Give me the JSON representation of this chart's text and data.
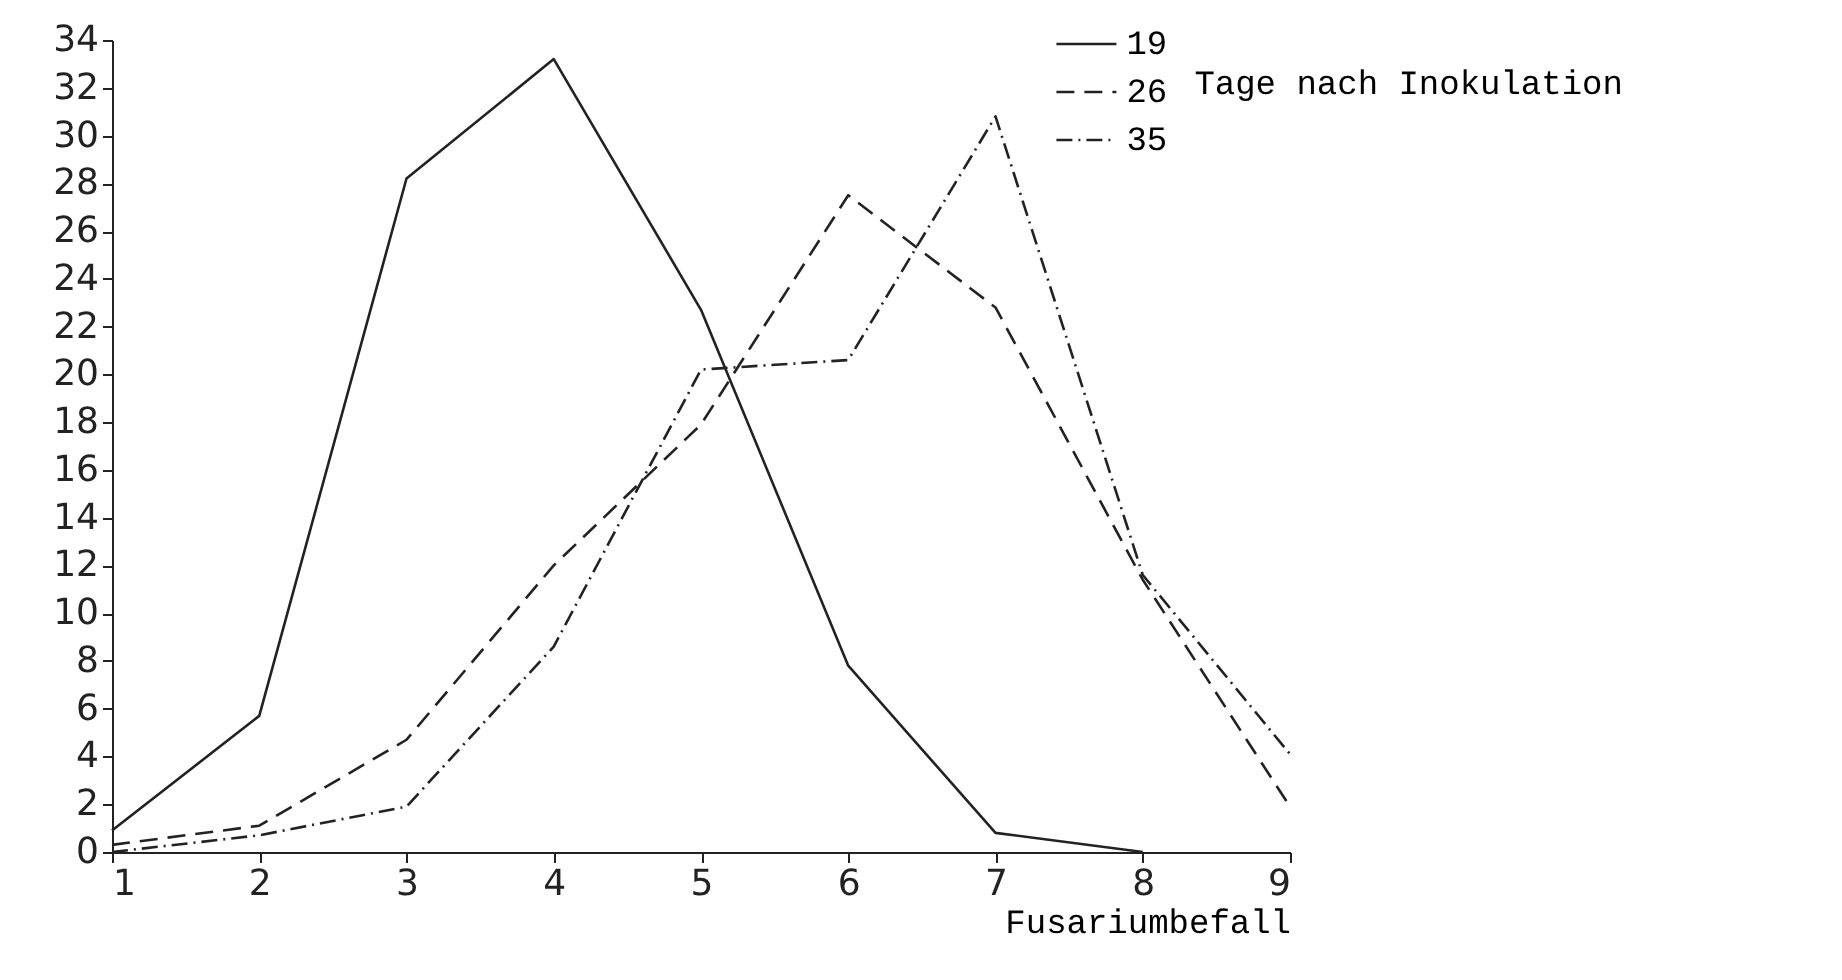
{
  "chart_data": {
    "type": "line",
    "xlabel": "Fusariumbefall",
    "legend_title": "Tage nach Inokulation",
    "x": [
      1,
      2,
      3,
      4,
      5,
      6,
      7,
      8,
      9
    ],
    "series": [
      {
        "name": "19",
        "color": "#222222",
        "line_style": "solid",
        "values": [
          0.9,
          5.7,
          28.2,
          33.2,
          22.7,
          7.8,
          0.8,
          0,
          null
        ]
      },
      {
        "name": "26",
        "color": "#222222",
        "line_style": "dashed",
        "values": [
          0.3,
          1.1,
          4.7,
          12,
          17.9,
          27.5,
          22.8,
          11.4,
          1.9
        ]
      },
      {
        "name": "35",
        "color": "#222222",
        "line_style": "dotted",
        "values": [
          0,
          0.7,
          1.9,
          8.6,
          20.2,
          20.6,
          30.8,
          11.6,
          4.1
        ]
      }
    ],
    "xlim": [
      1,
      9
    ],
    "xticks": [
      1,
      2,
      3,
      4,
      5,
      6,
      7,
      8,
      9
    ],
    "ylim": [
      0,
      34
    ],
    "yticks": [
      0,
      2,
      4,
      6,
      8,
      10,
      12,
      14,
      16,
      18,
      20,
      22,
      24,
      26,
      28,
      30,
      32,
      34
    ],
    "grid": false,
    "legend": "top right",
    "marker": "none"
  }
}
